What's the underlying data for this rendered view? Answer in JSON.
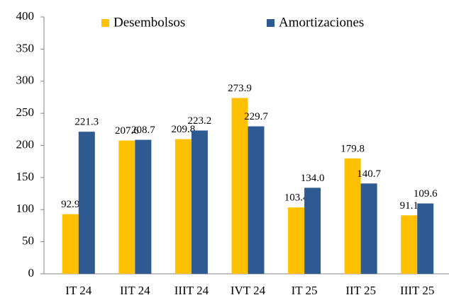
{
  "chart_data": {
    "type": "bar",
    "categories": [
      "IT 24",
      "IIT 24",
      "IIIT 24",
      "IVT 24",
      "IT 25",
      "IIT 25",
      "IIIT 25"
    ],
    "series": [
      {
        "name": "Desembolsos",
        "color": "#ffc000",
        "values": [
          92.9,
          207.6,
          209.8,
          273.9,
          103.4,
          179.8,
          91.1
        ],
        "value_labels": [
          "92.9",
          "207.6",
          "209.8",
          "273.9",
          "103.4",
          "179.8",
          "91.1"
        ]
      },
      {
        "name": "Amortizaciones",
        "color": "#2e5a92",
        "values": [
          221.3,
          208.7,
          223.2,
          229.7,
          134.0,
          140.7,
          109.6
        ],
        "value_labels": [
          "221.3",
          "208.7",
          "223.2",
          "229.7",
          "134.0",
          "140.7",
          "109.6"
        ]
      }
    ],
    "ylim": [
      0,
      400
    ],
    "yticks": [
      0,
      50,
      100,
      150,
      200,
      250,
      300,
      350,
      400
    ],
    "grid": false,
    "legend": "top"
  }
}
